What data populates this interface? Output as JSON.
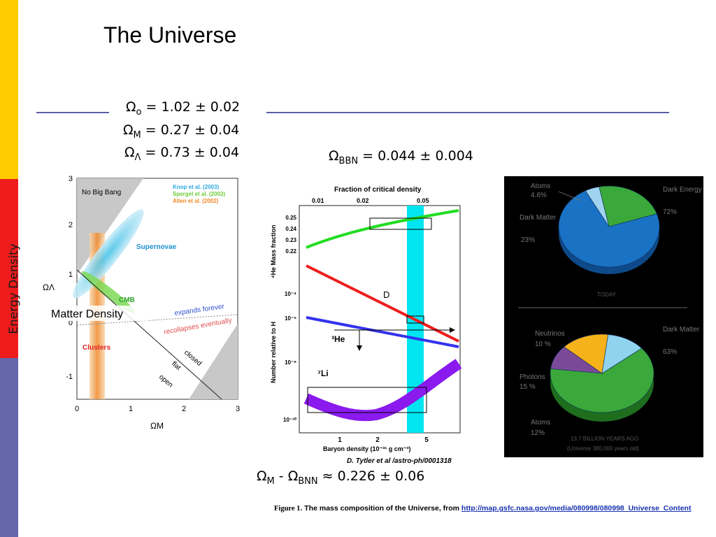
{
  "slide": {
    "title": "The Universe",
    "side_label": "Energy Density",
    "colors": {
      "sidebar_top": "#ffcc00",
      "sidebar_mid": "#ee1c1c",
      "sidebar_bottom": "#6666aa",
      "rule": "#5a5ea8"
    }
  },
  "equations": {
    "omega_0": {
      "symbol": "Ω",
      "sub": "o",
      "value": "= 1.02 ± 0.02"
    },
    "omega_m": {
      "symbol": "Ω",
      "sub": "M",
      "value": "= 0.27 ± 0.04"
    },
    "omega_l": {
      "symbol": "Ω",
      "sub": "Λ",
      "value": "= 0.73 ± 0.04"
    },
    "omega_bbn": {
      "symbol": "Ω",
      "sub": "BBN",
      "value": "= 0.044 ± 0.004"
    },
    "difference": {
      "sym1": "Ω",
      "sub1": "M",
      "minus": "-",
      "sym2": "Ω",
      "sub2": "BNN",
      "value": "≈ 0.226 ± 0.06"
    }
  },
  "chart_data": [
    {
      "type": "scatter",
      "xlabel": "ΩM",
      "ylabel": "ΩΛ",
      "xlim": [
        0,
        3
      ],
      "ylim": [
        -1.5,
        3
      ],
      "x_ticks": [
        "0",
        "1",
        "2",
        "3"
      ],
      "y_ticks": [
        "3",
        "2",
        "1",
        "0",
        "-1"
      ],
      "legend": [
        "Knop et al. (2003)",
        "Spergel et al. (2003)",
        "Allen et al. (2002)"
      ],
      "region_labels": [
        "No Big Bang",
        "Supernovae",
        "CMB",
        "Clusters"
      ],
      "annotations": [
        "expands forever",
        "recollapses eventually",
        "closed",
        "flat",
        "open"
      ],
      "overlay_label": "Matter Density"
    },
    {
      "type": "line",
      "top_axis_label": "Fraction of critical density",
      "top_ticks": [
        "0.01",
        "0.02",
        "0.05"
      ],
      "ylabel_upper": "⁴He Mass fraction",
      "upper_ticks": [
        "0.25",
        "0.24",
        "0.23",
        "0.22"
      ],
      "ylabel_lower": "Number relative to H",
      "lower_ticks": [
        "10⁻⁴",
        "10⁻⁵",
        "10⁻⁹",
        "10⁻¹⁰"
      ],
      "xlabel": "Baryon density (10⁻³¹ g cm⁻³)",
      "x_ticks": [
        "1",
        "2",
        "5"
      ],
      "series_labels": [
        "D",
        "³He",
        "⁷Li"
      ],
      "credit": "D. Tytler et al /astro-ph/0001318"
    },
    {
      "type": "pie",
      "labels": [
        "Atoms",
        "Dark Matter",
        "Dark Energy"
      ],
      "values": [
        4.6,
        23,
        72
      ],
      "value_labels": [
        "4.6%",
        "23%",
        "72%"
      ],
      "colors": [
        "#9fd3f0",
        "#3aa83a",
        "#1a72c4"
      ],
      "caption": "TODAY"
    },
    {
      "type": "pie",
      "labels": [
        "Dark Matter",
        "Neutrinos",
        "Photons",
        "Atoms"
      ],
      "values": [
        63,
        10,
        15,
        12
      ],
      "value_labels": [
        "63%",
        "10 %",
        "15 %",
        "12%"
      ],
      "colors": [
        "#3aa83a",
        "#7a4a98",
        "#f5b21a",
        "#8fd3ef"
      ],
      "caption": "13.7 BILLION YEARS AGO",
      "subcaption": "(Universe 380,000 years old)"
    }
  ],
  "caption": {
    "figure_label": "Figure 1",
    "text": ". The mass composition of the Universe, from ",
    "link": "http://map.gsfc.nasa.gov/media/080998/080998_Universe_Content"
  }
}
